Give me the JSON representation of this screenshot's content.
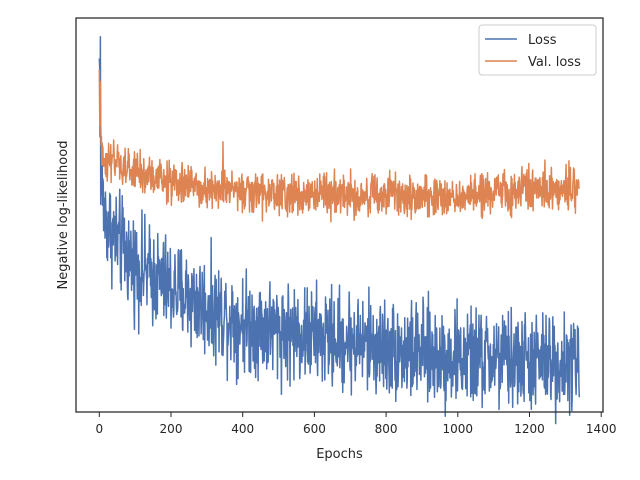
{
  "chart_data": {
    "type": "line",
    "title": "",
    "xlabel": "Epochs",
    "ylabel": "Negative log-likelihood",
    "xlim": [
      -65,
      1405
    ],
    "x_ticks": [
      0,
      200,
      400,
      600,
      800,
      1000,
      1200,
      1400
    ],
    "y_tick_labels": "none",
    "grid": false,
    "legend_position": "top-right",
    "n_epochs": 1340,
    "series": [
      {
        "name": "Loss",
        "color": "#4c72b0",
        "trend": [
          [
            0,
            0.92
          ],
          [
            2,
            0.74
          ],
          [
            5,
            0.62
          ],
          [
            15,
            0.52
          ],
          [
            40,
            0.47
          ],
          [
            100,
            0.39
          ],
          [
            200,
            0.33
          ],
          [
            300,
            0.28
          ],
          [
            400,
            0.24
          ],
          [
            500,
            0.22
          ],
          [
            600,
            0.2
          ],
          [
            700,
            0.19
          ],
          [
            800,
            0.17
          ],
          [
            900,
            0.155
          ],
          [
            1000,
            0.145
          ],
          [
            1100,
            0.14
          ],
          [
            1200,
            0.135
          ],
          [
            1338,
            0.13
          ]
        ],
        "spikes": [
          [
            3,
            1.0
          ],
          [
            1,
            0.92
          ]
        ],
        "noise": 0.065
      },
      {
        "name": "Val. loss",
        "color": "#dd8452",
        "trend": [
          [
            0,
            0.9
          ],
          [
            3,
            0.72
          ],
          [
            10,
            0.68
          ],
          [
            50,
            0.655
          ],
          [
            100,
            0.64
          ],
          [
            200,
            0.61
          ],
          [
            300,
            0.6
          ],
          [
            400,
            0.585
          ],
          [
            500,
            0.58
          ],
          [
            600,
            0.58
          ],
          [
            700,
            0.58
          ],
          [
            800,
            0.575
          ],
          [
            900,
            0.575
          ],
          [
            1000,
            0.575
          ],
          [
            1100,
            0.585
          ],
          [
            1200,
            0.595
          ],
          [
            1338,
            0.6
          ]
        ],
        "spikes": [
          [
            3,
            0.88
          ],
          [
            1,
            0.8
          ],
          [
            345,
            0.72
          ]
        ],
        "noise": 0.028
      }
    ]
  }
}
